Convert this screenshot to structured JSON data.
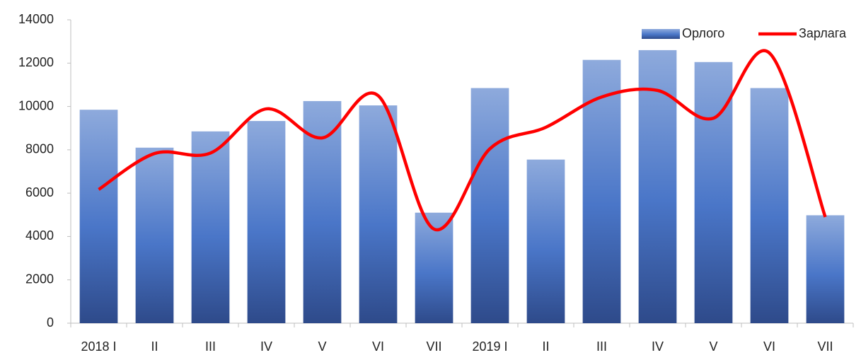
{
  "chart_data": {
    "type": "bar_line",
    "categories": [
      "2018 I",
      "II",
      "III",
      "IV",
      "V",
      "VI",
      "VII",
      "2019 I",
      "II",
      "III",
      "IV",
      "V",
      "VI",
      "VII"
    ],
    "series": [
      {
        "name": "Орлого",
        "type": "bar",
        "color": "#4472c4",
        "values": [
          9850,
          8100,
          8850,
          9330,
          10250,
          10050,
          5100,
          10850,
          7550,
          12150,
          12600,
          12050,
          10850,
          4980
        ]
      },
      {
        "name": "Зарлага",
        "type": "line",
        "color": "#ff0000",
        "values": [
          6170,
          7830,
          7850,
          9890,
          8550,
          10500,
          4340,
          8050,
          9040,
          10440,
          10740,
          9460,
          12470,
          4900
        ]
      }
    ],
    "ylim": [
      0,
      14000
    ],
    "yticks": [
      0,
      2000,
      4000,
      6000,
      8000,
      10000,
      12000,
      14000
    ],
    "legend": "top-right"
  }
}
